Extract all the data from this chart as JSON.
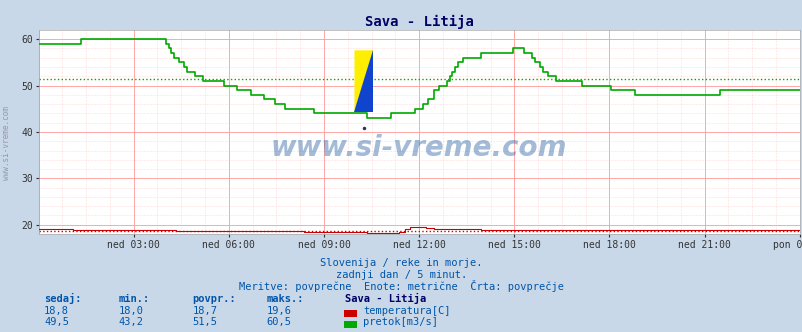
{
  "title": "Sava - Litija",
  "bg_color": "#c8d8e8",
  "plot_bg_color": "#ffffff",
  "xlabel_times": [
    "ned 03:00",
    "ned 06:00",
    "ned 09:00",
    "ned 12:00",
    "ned 15:00",
    "ned 18:00",
    "ned 21:00",
    "pon 00:00"
  ],
  "ylim": [
    18,
    62
  ],
  "yticks": [
    20,
    30,
    40,
    50,
    60
  ],
  "n_points": 288,
  "temp_color": "#cc0000",
  "flow_color": "#00aa00",
  "temp_avg": 18.7,
  "flow_avg": 51.5,
  "subtitle1": "Slovenija / reke in morje.",
  "subtitle2": "zadnji dan / 5 minut.",
  "subtitle3": "Meritve: povprečne  Enote: metrične  Črta: povprečje",
  "legend_title": "Sava - Litija",
  "label_temp": "temperatura[C]",
  "label_flow": "pretok[m3/s]",
  "watermark": "www.si-vreme.com",
  "table_headers": [
    "sedaj:",
    "min.:",
    "povpr.:",
    "maks.:"
  ],
  "temp_row": [
    "18,8",
    "18,0",
    "18,7",
    "19,6"
  ],
  "flow_row": [
    "49,5",
    "43,2",
    "51,5",
    "60,5"
  ],
  "flow_data": [
    59,
    59,
    59,
    59,
    59,
    59,
    59,
    59,
    59,
    59,
    59,
    59,
    59,
    59,
    59,
    59,
    60,
    60,
    60,
    60,
    60,
    60,
    60,
    60,
    60,
    60,
    60,
    60,
    60,
    60,
    60,
    60,
    60,
    60,
    60,
    60,
    60,
    60,
    60,
    60,
    60,
    60,
    60,
    60,
    60,
    60,
    60,
    60,
    59,
    58,
    57,
    56,
    56,
    55,
    55,
    54,
    53,
    53,
    53,
    52,
    52,
    52,
    51,
    51,
    51,
    51,
    51,
    51,
    51,
    51,
    50,
    50,
    50,
    50,
    50,
    49,
    49,
    49,
    49,
    49,
    48,
    48,
    48,
    48,
    48,
    47,
    47,
    47,
    47,
    46,
    46,
    46,
    46,
    45,
    45,
    45,
    45,
    45,
    45,
    45,
    45,
    45,
    45,
    45,
    44,
    44,
    44,
    44,
    44,
    44,
    44,
    44,
    44,
    44,
    44,
    44,
    44,
    44,
    44,
    44,
    44,
    44,
    44,
    44,
    43,
    43,
    43,
    43,
    43,
    43,
    43,
    43,
    43,
    44,
    44,
    44,
    44,
    44,
    44,
    44,
    44,
    44,
    45,
    45,
    45,
    46,
    46,
    47,
    47,
    49,
    49,
    50,
    50,
    50,
    51,
    52,
    53,
    54,
    55,
    55,
    56,
    56,
    56,
    56,
    56,
    56,
    56,
    57,
    57,
    57,
    57,
    57,
    57,
    57,
    57,
    57,
    57,
    57,
    57,
    58,
    58,
    58,
    58,
    57,
    57,
    57,
    56,
    55,
    55,
    54,
    53,
    53,
    52,
    52,
    52,
    51,
    51,
    51,
    51,
    51,
    51,
    51,
    51,
    51,
    51,
    50,
    50,
    50,
    50,
    50,
    50,
    50,
    50,
    50,
    50,
    50,
    49,
    49,
    49,
    49,
    49,
    49,
    49,
    49,
    49,
    48,
    48,
    48,
    48,
    48,
    48,
    48,
    48,
    48,
    48,
    48,
    48,
    48,
    48,
    48,
    48,
    48,
    48,
    48,
    48,
    48,
    48,
    48,
    48,
    48,
    48,
    48,
    48,
    48,
    48,
    48,
    48,
    49,
    49,
    49,
    49,
    49,
    49,
    49,
    49,
    49,
    49,
    49,
    49,
    49,
    49,
    49,
    49,
    49,
    49,
    49,
    49,
    49,
    49,
    49,
    49,
    49,
    49,
    49,
    49,
    49,
    49,
    49
  ],
  "temp_data": [
    19.0,
    19.0,
    19.0,
    19.0,
    19.0,
    19.0,
    19.0,
    19.0,
    19.0,
    19.0,
    19.0,
    19.0,
    19.0,
    18.8,
    18.8,
    18.8,
    18.8,
    18.8,
    18.8,
    18.8,
    18.8,
    18.8,
    18.8,
    18.8,
    18.8,
    18.8,
    18.8,
    18.8,
    18.8,
    18.8,
    18.8,
    18.8,
    18.8,
    18.8,
    18.8,
    18.8,
    18.8,
    18.8,
    18.8,
    18.8,
    18.8,
    18.8,
    18.8,
    18.8,
    18.8,
    18.8,
    18.8,
    18.8,
    18.8,
    18.8,
    18.8,
    18.8,
    18.7,
    18.7,
    18.7,
    18.7,
    18.7,
    18.7,
    18.7,
    18.7,
    18.7,
    18.7,
    18.7,
    18.7,
    18.7,
    18.7,
    18.7,
    18.7,
    18.7,
    18.7,
    18.7,
    18.7,
    18.7,
    18.7,
    18.7,
    18.7,
    18.7,
    18.7,
    18.7,
    18.7,
    18.7,
    18.7,
    18.7,
    18.6,
    18.6,
    18.6,
    18.6,
    18.6,
    18.6,
    18.6,
    18.6,
    18.6,
    18.6,
    18.6,
    18.6,
    18.6,
    18.6,
    18.6,
    18.6,
    18.6,
    18.5,
    18.5,
    18.5,
    18.5,
    18.5,
    18.5,
    18.5,
    18.5,
    18.5,
    18.5,
    18.5,
    18.5,
    18.5,
    18.5,
    18.5,
    18.5,
    18.5,
    18.5,
    18.5,
    18.5,
    18.5,
    18.5,
    18.5,
    18.5,
    18.3,
    18.3,
    18.3,
    18.3,
    18.3,
    18.3,
    18.3,
    18.3,
    18.3,
    18.3,
    18.3,
    18.3,
    18.4,
    18.4,
    19.0,
    19.0,
    19.5,
    19.6,
    19.6,
    19.6,
    19.6,
    19.5,
    19.4,
    19.3,
    19.2,
    19.1,
    19.0,
    19.0,
    19.0,
    19.0,
    19.0,
    19.0,
    19.0,
    19.0,
    19.0,
    19.0,
    19.0,
    19.0,
    19.0,
    19.0,
    19.0,
    19.0,
    19.0,
    18.9,
    18.9,
    18.9,
    18.9,
    18.9,
    18.9,
    18.9,
    18.9,
    18.9,
    18.9,
    18.9,
    18.9,
    18.9,
    18.9,
    18.9,
    18.8,
    18.8,
    18.8,
    18.8,
    18.8,
    18.8,
    18.8,
    18.8,
    18.8,
    18.8,
    18.8,
    18.8,
    18.8,
    18.8,
    18.8,
    18.8,
    18.8,
    18.8,
    18.8,
    18.8,
    18.8,
    18.8,
    18.8,
    18.8,
    18.8,
    18.8,
    18.8,
    18.8,
    18.8,
    18.8,
    18.8,
    18.8,
    18.8,
    18.8,
    18.8,
    18.8,
    18.8,
    18.8,
    18.8,
    18.8,
    18.8,
    18.8,
    18.8,
    18.8,
    18.8,
    18.8,
    18.8,
    18.8,
    18.8,
    18.8,
    18.8,
    18.8,
    18.8,
    18.8,
    18.8,
    18.8,
    18.8,
    18.8,
    18.8,
    18.8,
    18.8,
    18.8,
    18.8,
    18.8,
    18.8,
    18.8,
    18.8,
    18.8,
    18.8,
    18.8,
    18.8,
    18.8,
    18.8,
    18.8,
    18.8,
    18.8,
    18.8,
    18.8,
    18.8,
    18.8,
    18.8,
    18.8,
    18.8,
    18.8,
    18.8,
    18.8,
    18.8,
    18.8,
    18.8,
    18.8,
    18.8,
    18.8,
    18.8,
    18.8,
    18.8,
    18.8,
    18.8,
    18.8,
    18.8,
    18.8,
    18.8,
    18.8,
    18.8,
    18.8,
    18.8,
    18.8
  ]
}
